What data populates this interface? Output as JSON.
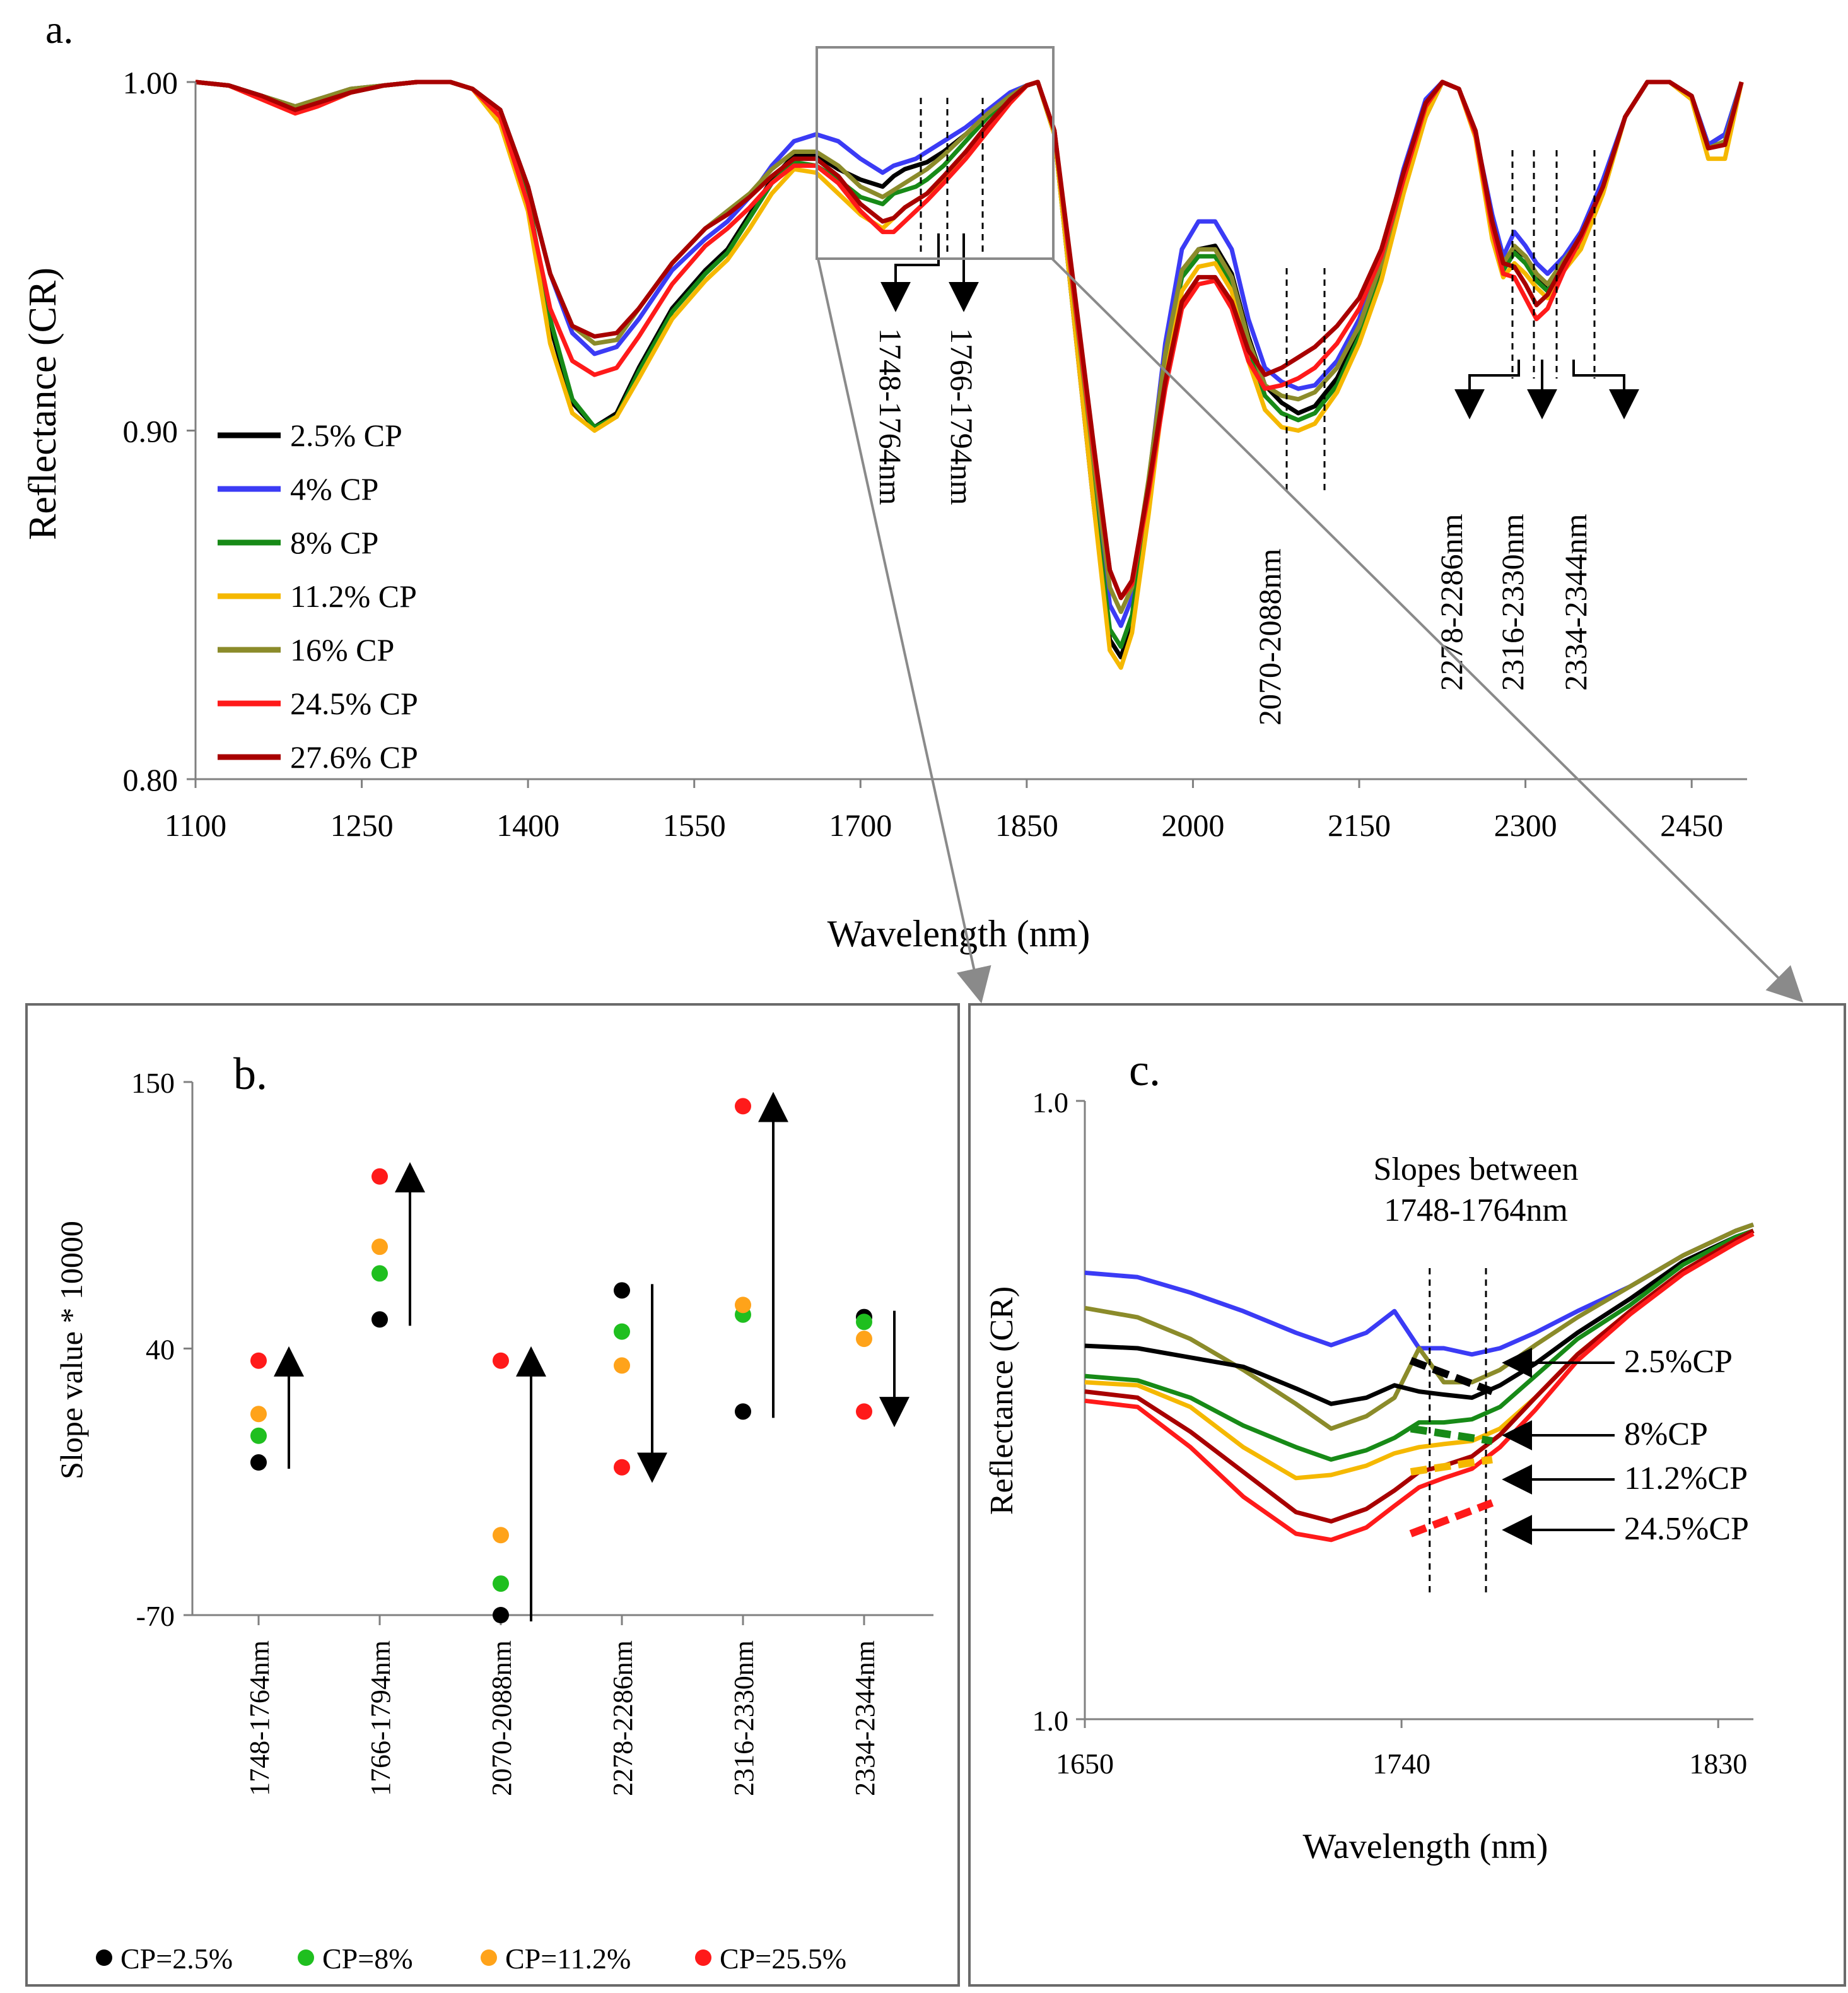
{
  "chart_data": [
    {
      "panel": "a.",
      "type": "line",
      "xlabel": "Wavelength (nm)",
      "ylabel": "Reflectance (CR)",
      "xlim": [
        1100,
        2500
      ],
      "ylim": [
        0.8,
        1.0
      ],
      "x_ticks": [
        1100,
        1250,
        1400,
        1550,
        1700,
        1850,
        2000,
        2150,
        2300,
        2450
      ],
      "y_ticks": [
        "0.80",
        "0.90",
        "1.00"
      ],
      "x": [
        1100,
        1130,
        1160,
        1190,
        1210,
        1240,
        1270,
        1300,
        1330,
        1350,
        1375,
        1400,
        1420,
        1440,
        1460,
        1480,
        1500,
        1530,
        1560,
        1580,
        1600,
        1620,
        1640,
        1660,
        1680,
        1700,
        1720,
        1730,
        1740,
        1750,
        1760,
        1775,
        1795,
        1815,
        1835,
        1850,
        1860,
        1875,
        1890,
        1910,
        1925,
        1935,
        1945,
        1960,
        1975,
        1990,
        2005,
        2020,
        2035,
        2050,
        2065,
        2080,
        2095,
        2110,
        2130,
        2150,
        2170,
        2190,
        2210,
        2225,
        2240,
        2255,
        2270,
        2280,
        2290,
        2300,
        2310,
        2320,
        2335,
        2350,
        2370,
        2390,
        2410,
        2430,
        2450,
        2465,
        2480,
        2495
      ],
      "series": [
        {
          "name": "2.5% CP",
          "color": "#000000",
          "values": [
            1.0,
            0.999,
            0.996,
            0.993,
            0.995,
            0.998,
            0.999,
            1.0,
            1.0,
            0.998,
            0.99,
            0.965,
            0.93,
            0.908,
            0.901,
            0.905,
            0.918,
            0.935,
            0.946,
            0.952,
            0.962,
            0.972,
            0.979,
            0.979,
            0.975,
            0.972,
            0.97,
            0.973,
            0.975,
            0.976,
            0.977,
            0.98,
            0.985,
            0.991,
            0.996,
            0.999,
            1.0,
            0.985,
            0.94,
            0.88,
            0.84,
            0.835,
            0.845,
            0.88,
            0.92,
            0.945,
            0.952,
            0.953,
            0.945,
            0.927,
            0.913,
            0.908,
            0.905,
            0.907,
            0.915,
            0.928,
            0.945,
            0.97,
            0.99,
            1.0,
            0.998,
            0.985,
            0.96,
            0.947,
            0.952,
            0.95,
            0.945,
            0.94,
            0.948,
            0.955,
            0.97,
            0.99,
            1.0,
            1.0,
            0.996,
            0.982,
            0.985,
            1.0
          ]
        },
        {
          "name": "4% CP",
          "color": "#3b3bf5",
          "values": [
            1.0,
            0.999,
            0.996,
            0.992,
            0.994,
            0.997,
            0.999,
            1.0,
            1.0,
            0.998,
            0.992,
            0.97,
            0.945,
            0.928,
            0.922,
            0.924,
            0.932,
            0.946,
            0.955,
            0.96,
            0.967,
            0.976,
            0.983,
            0.985,
            0.983,
            0.978,
            0.974,
            0.976,
            0.977,
            0.978,
            0.98,
            0.983,
            0.987,
            0.992,
            0.997,
            0.999,
            1.0,
            0.986,
            0.945,
            0.89,
            0.85,
            0.844,
            0.852,
            0.885,
            0.925,
            0.952,
            0.96,
            0.96,
            0.952,
            0.932,
            0.918,
            0.914,
            0.912,
            0.913,
            0.92,
            0.932,
            0.95,
            0.975,
            0.995,
            1.0,
            0.998,
            0.985,
            0.962,
            0.95,
            0.957,
            0.953,
            0.948,
            0.945,
            0.95,
            0.957,
            0.972,
            0.99,
            1.0,
            1.0,
            0.996,
            0.982,
            0.985,
            1.0
          ]
        },
        {
          "name": "8% CP",
          "color": "#178a17",
          "values": [
            1.0,
            0.999,
            0.996,
            0.992,
            0.994,
            0.997,
            0.999,
            1.0,
            1.0,
            0.998,
            0.99,
            0.967,
            0.932,
            0.909,
            0.901,
            0.904,
            0.917,
            0.934,
            0.945,
            0.951,
            0.961,
            0.971,
            0.977,
            0.976,
            0.972,
            0.967,
            0.965,
            0.968,
            0.969,
            0.97,
            0.972,
            0.976,
            0.983,
            0.99,
            0.996,
            0.999,
            1.0,
            0.985,
            0.94,
            0.882,
            0.843,
            0.838,
            0.847,
            0.881,
            0.92,
            0.944,
            0.95,
            0.95,
            0.942,
            0.924,
            0.91,
            0.905,
            0.903,
            0.905,
            0.913,
            0.927,
            0.944,
            0.97,
            0.992,
            1.0,
            0.998,
            0.985,
            0.958,
            0.946,
            0.951,
            0.948,
            0.943,
            0.94,
            0.948,
            0.954,
            0.97,
            0.99,
            1.0,
            1.0,
            0.996,
            0.981,
            0.983,
            1.0
          ]
        },
        {
          "name": "11.2% CP",
          "color": "#f5b800",
          "values": [
            1.0,
            0.999,
            0.995,
            0.991,
            0.993,
            0.997,
            0.999,
            1.0,
            1.0,
            0.998,
            0.988,
            0.963,
            0.925,
            0.905,
            0.9,
            0.904,
            0.915,
            0.932,
            0.943,
            0.949,
            0.958,
            0.968,
            0.975,
            0.974,
            0.968,
            0.962,
            0.958,
            0.961,
            0.964,
            0.966,
            0.968,
            0.972,
            0.978,
            0.986,
            0.994,
            0.999,
            1.0,
            0.985,
            0.94,
            0.88,
            0.837,
            0.832,
            0.842,
            0.876,
            0.915,
            0.94,
            0.947,
            0.948,
            0.94,
            0.92,
            0.906,
            0.901,
            0.9,
            0.902,
            0.911,
            0.925,
            0.943,
            0.968,
            0.99,
            1.0,
            0.998,
            0.984,
            0.955,
            0.944,
            0.948,
            0.945,
            0.941,
            0.938,
            0.946,
            0.952,
            0.968,
            0.99,
            1.0,
            1.0,
            0.995,
            0.978,
            0.978,
            1.0
          ]
        },
        {
          "name": "16% CP",
          "color": "#8b8b2a",
          "values": [
            1.0,
            0.999,
            0.996,
            0.993,
            0.995,
            0.998,
            0.999,
            1.0,
            1.0,
            0.998,
            0.992,
            0.97,
            0.945,
            0.93,
            0.925,
            0.926,
            0.935,
            0.948,
            0.958,
            0.963,
            0.968,
            0.975,
            0.98,
            0.98,
            0.976,
            0.97,
            0.967,
            0.969,
            0.971,
            0.973,
            0.975,
            0.979,
            0.985,
            0.991,
            0.996,
            0.999,
            1.0,
            0.986,
            0.945,
            0.892,
            0.855,
            0.848,
            0.855,
            0.886,
            0.922,
            0.946,
            0.952,
            0.952,
            0.944,
            0.926,
            0.913,
            0.91,
            0.909,
            0.911,
            0.918,
            0.93,
            0.948,
            0.972,
            0.993,
            1.0,
            0.998,
            0.985,
            0.96,
            0.948,
            0.953,
            0.95,
            0.945,
            0.942,
            0.949,
            0.955,
            0.97,
            0.99,
            1.0,
            1.0,
            0.996,
            0.981,
            0.983,
            1.0
          ]
        },
        {
          "name": "24.5% CP",
          "color": "#ff1a1a",
          "values": [
            1.0,
            0.999,
            0.995,
            0.991,
            0.993,
            0.997,
            0.999,
            1.0,
            1.0,
            0.998,
            0.99,
            0.965,
            0.935,
            0.92,
            0.916,
            0.918,
            0.927,
            0.942,
            0.953,
            0.958,
            0.964,
            0.971,
            0.976,
            0.976,
            0.971,
            0.963,
            0.957,
            0.957,
            0.96,
            0.963,
            0.966,
            0.971,
            0.978,
            0.986,
            0.994,
            0.999,
            1.0,
            0.986,
            0.946,
            0.895,
            0.86,
            0.852,
            0.856,
            0.882,
            0.912,
            0.935,
            0.942,
            0.943,
            0.935,
            0.92,
            0.912,
            0.913,
            0.915,
            0.918,
            0.925,
            0.935,
            0.95,
            0.972,
            0.993,
            1.0,
            0.998,
            0.985,
            0.958,
            0.945,
            0.944,
            0.938,
            0.932,
            0.935,
            0.946,
            0.955,
            0.97,
            0.99,
            1.0,
            1.0,
            0.996,
            0.981,
            0.982,
            1.0
          ]
        },
        {
          "name": "27.6% CP",
          "color": "#a80000",
          "values": [
            1.0,
            0.999,
            0.996,
            0.992,
            0.994,
            0.997,
            0.999,
            1.0,
            1.0,
            0.998,
            0.992,
            0.97,
            0.945,
            0.93,
            0.927,
            0.928,
            0.935,
            0.948,
            0.958,
            0.962,
            0.967,
            0.973,
            0.978,
            0.978,
            0.973,
            0.965,
            0.96,
            0.961,
            0.964,
            0.966,
            0.968,
            0.973,
            0.98,
            0.988,
            0.995,
            0.999,
            1.0,
            0.986,
            0.948,
            0.897,
            0.86,
            0.852,
            0.857,
            0.884,
            0.914,
            0.937,
            0.944,
            0.944,
            0.937,
            0.923,
            0.916,
            0.918,
            0.921,
            0.924,
            0.93,
            0.938,
            0.952,
            0.974,
            0.994,
            1.0,
            0.998,
            0.986,
            0.96,
            0.948,
            0.947,
            0.942,
            0.936,
            0.939,
            0.948,
            0.956,
            0.97,
            0.99,
            1.0,
            1.0,
            0.996,
            0.981,
            0.982,
            1.0
          ]
        }
      ],
      "annotations": [
        {
          "label": "1748-1764nm",
          "x1": 1748,
          "x2": 1764
        },
        {
          "label": "1766-1794nm",
          "x1": 1766,
          "x2": 1794
        },
        {
          "label": "2070-2088nm",
          "x1": 2070,
          "x2": 2088
        },
        {
          "label": "2278-2286nm",
          "x1": 2278,
          "x2": 2286
        },
        {
          "label": "2316-2330nm",
          "x1": 2316,
          "x2": 2330
        },
        {
          "label": "2334-2344nm",
          "x1": 2334,
          "x2": 2344
        }
      ],
      "legend": "bottom-left"
    },
    {
      "panel": "b.",
      "type": "scatter",
      "ylabel": "Slope  value * 10000",
      "ylim": [
        -70,
        150
      ],
      "y_ticks": [
        "-70",
        "40",
        "150"
      ],
      "categories": [
        "1748-1764nm",
        "1766-1794nm",
        "2070-2088nm",
        "2278-2286nm",
        "2316-2330nm",
        "2334-2344nm"
      ],
      "series": [
        {
          "name": "CP=2.5%",
          "color": "#000000",
          "values": [
            -7,
            52,
            -70,
            64,
            14,
            53
          ]
        },
        {
          "name": "CP=8%",
          "color": "#1fbf1f",
          "values": [
            4,
            71,
            -57,
            47,
            54,
            51
          ]
        },
        {
          "name": "CP=11.2%",
          "color": "#ffa31a",
          "values": [
            13,
            82,
            -37,
            33,
            58,
            44
          ]
        },
        {
          "name": "CP=25.5%",
          "color": "#ff1a1a",
          "values": [
            35,
            111,
            35,
            -9,
            140,
            14
          ]
        }
      ],
      "trend_arrows": [
        "up",
        "up",
        "up",
        "down",
        "up",
        "down"
      ],
      "legend": "bottom"
    },
    {
      "panel": "c.",
      "type": "line",
      "xlabel": "Wavelength (nm)",
      "ylabel": "Reflectance (CR)",
      "xlim": [
        1650,
        1840
      ],
      "ylim": [
        0,
        1
      ],
      "x_ticks": [
        1650,
        1740,
        1830
      ],
      "y_ticks": [
        "1.0",
        "1.0"
      ],
      "x": [
        1650,
        1665,
        1680,
        1695,
        1710,
        1720,
        1730,
        1738,
        1745,
        1752,
        1760,
        1768,
        1778,
        1790,
        1805,
        1820,
        1835,
        1840
      ],
      "series": [
        {
          "name": "4% CP",
          "color": "#3b3bf5",
          "values": [
            0.722,
            0.715,
            0.69,
            0.66,
            0.625,
            0.605,
            0.625,
            0.66,
            0.6,
            0.6,
            0.59,
            0.6,
            0.625,
            0.66,
            0.7,
            0.75,
            0.79,
            0.8
          ]
        },
        {
          "name": "16% CP",
          "color": "#8b8b2a",
          "values": [
            0.665,
            0.65,
            0.615,
            0.565,
            0.51,
            0.47,
            0.49,
            0.52,
            0.6,
            0.545,
            0.545,
            0.565,
            0.605,
            0.65,
            0.7,
            0.75,
            0.79,
            0.8
          ]
        },
        {
          "name": "2.5% CP",
          "color": "#000000",
          "values": [
            0.604,
            0.6,
            0.585,
            0.57,
            0.535,
            0.51,
            0.52,
            0.54,
            0.53,
            0.525,
            0.52,
            0.54,
            0.575,
            0.625,
            0.68,
            0.74,
            0.78,
            0.79
          ]
        },
        {
          "name": "8% CP",
          "color": "#178a17",
          "values": [
            0.555,
            0.548,
            0.52,
            0.475,
            0.44,
            0.42,
            0.435,
            0.455,
            0.48,
            0.48,
            0.485,
            0.505,
            0.555,
            0.615,
            0.67,
            0.735,
            0.78,
            0.79
          ]
        },
        {
          "name": "11.2% CP",
          "color": "#f5b800",
          "values": [
            0.545,
            0.54,
            0.505,
            0.44,
            0.39,
            0.395,
            0.41,
            0.43,
            0.44,
            0.445,
            0.45,
            0.47,
            0.52,
            0.59,
            0.66,
            0.725,
            0.775,
            0.79
          ]
        },
        {
          "name": "27.6% CP",
          "color": "#a80000",
          "values": [
            0.53,
            0.52,
            0.465,
            0.4,
            0.335,
            0.32,
            0.34,
            0.37,
            0.4,
            0.41,
            0.425,
            0.46,
            0.52,
            0.59,
            0.66,
            0.725,
            0.775,
            0.79
          ]
        },
        {
          "name": "24.5% CP",
          "color": "#ff1a1a",
          "values": [
            0.515,
            0.505,
            0.44,
            0.36,
            0.3,
            0.29,
            0.31,
            0.345,
            0.375,
            0.39,
            0.405,
            0.44,
            0.5,
            0.58,
            0.655,
            0.72,
            0.77,
            0.785
          ]
        }
      ],
      "slope_segments": [
        {
          "label": "2.5%CP",
          "color": "#000000",
          "x1": 1748,
          "x2": 1764,
          "y1": 0.58,
          "y2": 0.53
        },
        {
          "label": "8%CP",
          "color": "#178a17",
          "x1": 1748,
          "x2": 1764,
          "y1": 0.47,
          "y2": 0.45
        },
        {
          "label": "11.2%CP",
          "color": "#f5b800",
          "x1": 1748,
          "x2": 1764,
          "y1": 0.4,
          "y2": 0.42
        },
        {
          "label": "24.5%CP",
          "color": "#ff1a1a",
          "x1": 1748,
          "x2": 1764,
          "y1": 0.3,
          "y2": 0.35
        }
      ],
      "annotation": "Slopes between 1748-1764nm"
    }
  ],
  "annotation_text": {
    "slopes_line1": "Slopes between",
    "slopes_line2": "1748-1764nm"
  }
}
